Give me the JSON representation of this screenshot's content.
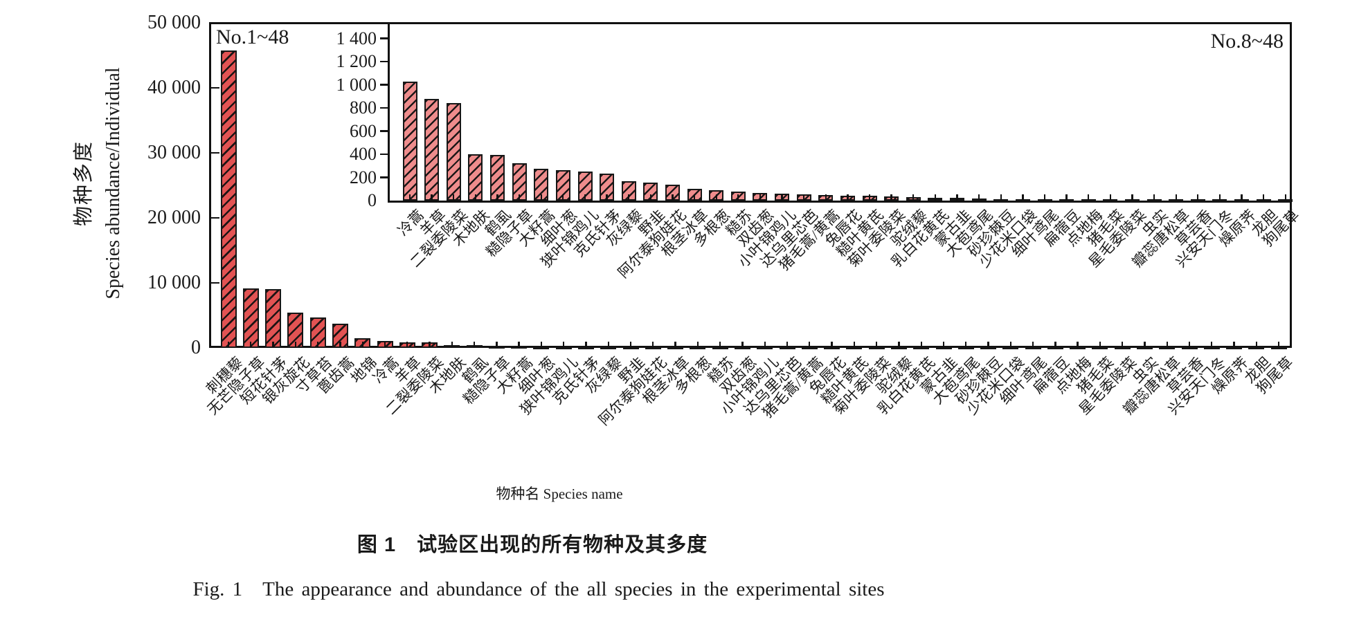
{
  "figure": {
    "y_axis_label_zh": "物种多度",
    "y_axis_label_en": "Species abundance/Individual",
    "x_axis_label": "物种名 Species name",
    "caption_zh": "图 1　试验区出现的所有物种及其多度",
    "caption_en": "Fig. 1　The appearance and abundance of the all species in the experimental sites"
  },
  "colors": {
    "bar_fill_main": "#e25353",
    "bar_fill_inset": "#ee8c8c",
    "bar_border": "#161616",
    "axis": "#111111",
    "text": "#1a1a1a"
  },
  "chart_data": [
    {
      "type": "bar",
      "panel": "main",
      "annotation": "No.1~48",
      "title": "",
      "xlabel": "物种名 Species name",
      "ylabel": "物种多度 Species abundance/Individual",
      "ylim": [
        0,
        50000
      ],
      "grid": false,
      "ytick_values": [
        0,
        10000,
        20000,
        30000,
        40000,
        50000
      ],
      "ytick_labels": [
        "0",
        "10 000",
        "20 000",
        "30 000",
        "40 000",
        "50 000"
      ],
      "categories": [
        "刺穗藜",
        "无芒隐子草",
        "短花针茅",
        "银灰旋花",
        "寸草苔",
        "蓖齿蒿",
        "地锦",
        "冷蒿",
        "羊草",
        "二裂委陵菜",
        "木地肤",
        "鹤虱",
        "糙隐子草",
        "大籽蒿",
        "细叶葱",
        "狭叶锦鸡儿",
        "克氏针茅",
        "灰绿藜",
        "野韭",
        "阿尔泰狗娃花",
        "根茎冰草",
        "多根葱",
        "糙苏",
        "双齿葱",
        "小叶锦鸡儿",
        "达乌里芯芭",
        "猪毛蒿/黄蒿",
        "兔唇花",
        "糙叶黄芪",
        "菊叶委陵菜",
        "驼绒藜",
        "乳白花黄芪",
        "蒙古韭",
        "大苞鸢尾",
        "砂珍棘豆",
        "少花米口袋",
        "细叶鸢尾",
        "扁蓿豆",
        "点地梅",
        "猪毛菜",
        "星毛委陵菜",
        "虫实",
        "瓣蕊唐松草",
        "草芸香",
        "兴安天门冬",
        "燥原荠",
        "龙胆",
        "狗尾草"
      ],
      "values": [
        45800,
        9200,
        9000,
        5400,
        4650,
        3750,
        1500,
        1030,
        875,
        840,
        400,
        395,
        320,
        272,
        262,
        252,
        232,
        168,
        158,
        140,
        104,
        92,
        76,
        68,
        62,
        56,
        50,
        45,
        40,
        35,
        30,
        26,
        22,
        18,
        15,
        13,
        11,
        9,
        8,
        7,
        6,
        5,
        5,
        4,
        4,
        3,
        3,
        2
      ]
    },
    {
      "type": "bar",
      "panel": "inset",
      "annotation": "No.8~48",
      "title": "",
      "xlabel": "",
      "ylabel": "",
      "ylim": [
        0,
        1400
      ],
      "grid": false,
      "ytick_values": [
        0,
        200,
        400,
        600,
        800,
        1000,
        1200,
        1400
      ],
      "ytick_labels": [
        "0",
        "200",
        "400",
        "600",
        "800",
        "1 000",
        "1 200",
        "1 400"
      ],
      "categories": [
        "冷蒿",
        "羊草",
        "二裂委陵菜",
        "木地肤",
        "鹤虱",
        "糙隐子草",
        "大籽蒿",
        "细叶葱",
        "狭叶锦鸡儿",
        "克氏针茅",
        "灰绿藜",
        "野韭",
        "阿尔泰狗娃花",
        "根茎冰草",
        "多根葱",
        "糙苏",
        "双齿葱",
        "小叶锦鸡儿",
        "达乌里芯芭",
        "猪毛蒿/黄蒿",
        "兔唇花",
        "糙叶黄芪",
        "菊叶委陵菜",
        "驼绒藜",
        "乳白花黄芪",
        "蒙古韭",
        "大苞鸢尾",
        "砂珍棘豆",
        "少花米口袋",
        "细叶鸢尾",
        "扁蓿豆",
        "点地梅",
        "猪毛菜",
        "星毛委陵菜",
        "虫实",
        "瓣蕊唐松草",
        "草芸香",
        "兴安天门冬",
        "燥原荠",
        "龙胆",
        "狗尾草"
      ],
      "values": [
        1030,
        875,
        840,
        400,
        395,
        320,
        272,
        262,
        252,
        232,
        168,
        158,
        140,
        104,
        92,
        76,
        68,
        62,
        56,
        50,
        45,
        40,
        35,
        30,
        26,
        22,
        18,
        15,
        13,
        11,
        9,
        8,
        7,
        6,
        5,
        5,
        4,
        4,
        3,
        3,
        2
      ]
    }
  ]
}
